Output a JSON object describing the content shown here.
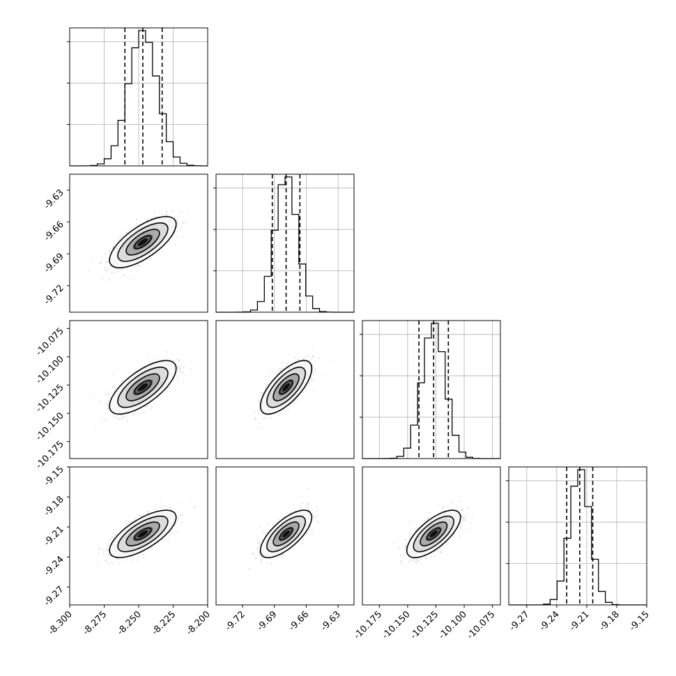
{
  "chart_data": {
    "type": "corner",
    "grid": true,
    "parameters": [
      {
        "median": -8.247,
        "std": 0.0105,
        "range": [
          -8.3,
          -8.2
        ],
        "ticks": [
          "-8.300",
          "-8.275",
          "-8.250",
          "-8.225",
          "-8.200"
        ],
        "tick_values": [
          -8.3,
          -8.275,
          -8.25,
          -8.225,
          -8.2
        ],
        "quantiles": [
          -8.26,
          -8.247,
          -8.233
        ]
      },
      {
        "median": -9.679,
        "std": 0.0105,
        "range": [
          -9.745,
          -9.615
        ],
        "ticks": [
          "-9.72",
          "-9.69",
          "-9.66",
          "-9.63"
        ],
        "tick_values": [
          -9.72,
          -9.69,
          -9.66,
          -9.63
        ],
        "quantiles": [
          -9.692,
          -9.679,
          -9.666
        ]
      },
      {
        "median": -10.127,
        "std": 0.0103,
        "range": [
          -10.19,
          -10.068
        ],
        "ticks": [
          "-10.175",
          "-10.150",
          "-10.125",
          "-10.100",
          "-10.075"
        ],
        "tick_values": [
          -10.175,
          -10.15,
          -10.125,
          -10.1,
          -10.075
        ],
        "quantiles": [
          -10.14,
          -10.127,
          -10.114
        ]
      },
      {
        "median": -9.217,
        "std": 0.0103,
        "range": [
          -9.288,
          -9.15
        ],
        "ticks": [
          "-9.27",
          "-9.24",
          "-9.21",
          "-9.18",
          "-9.15"
        ],
        "tick_values": [
          -9.27,
          -9.24,
          -9.21,
          -9.18,
          -9.15
        ],
        "quantiles": [
          -9.23,
          -9.217,
          -9.204
        ]
      }
    ],
    "correlation": 0.7,
    "histogram_bins": 20,
    "contour_levels_sigma": [
      0.5,
      1.0,
      1.5,
      2.0
    ]
  }
}
